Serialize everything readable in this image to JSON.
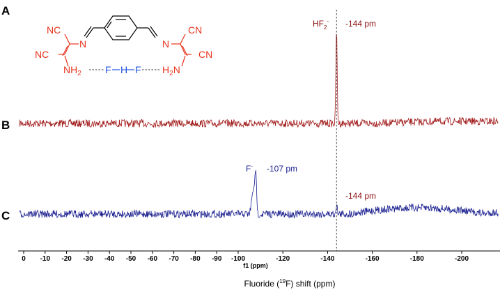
{
  "chart_data": {
    "type": "line",
    "title": "",
    "xlabel": "f1 (ppm)",
    "xlabel_main": "Fluoride (19F) shift (ppm)",
    "xlim": [
      5,
      -215
    ],
    "x_reversed": true,
    "xticks": [
      0,
      -10,
      -20,
      -30,
      -40,
      -50,
      -60,
      -70,
      -80,
      -90,
      -100,
      -120,
      -140,
      -160,
      -180,
      -200
    ],
    "panels": [
      "A",
      "B",
      "C"
    ],
    "reference_line": {
      "x": -144,
      "style": "dashed"
    },
    "series": [
      {
        "panel": "B",
        "color": "#a11a1a",
        "peaks": [
          {
            "x": -144,
            "label": "-144 pm",
            "species": "HF2-"
          }
        ]
      },
      {
        "panel": "C",
        "color": "#1a1f8f",
        "peaks": [
          {
            "x": -107,
            "label": "-107 pm",
            "species": "F-"
          },
          {
            "x": -144,
            "label": "-144 pm",
            "species": ""
          }
        ]
      }
    ]
  },
  "annotations": {
    "hf2_label": "HF",
    "hf2_sub": "2",
    "hf2_sup": "-",
    "peak_b_label": "-144 pm",
    "f_label": "F",
    "f_sup": "-",
    "peak_c1_label": "-107 pm",
    "peak_c2_label": "-144 pm"
  },
  "axis": {
    "f1_label": "f1 (ppm)",
    "title_prefix": "Fluoride (",
    "title_sup": "19",
    "title_suffix": "F) shift (ppm)"
  },
  "structure": {
    "nc_top_left": "NC",
    "nc_left": "NC",
    "cn_top_right": "CN",
    "cn_right": "CN",
    "n_left": "N",
    "n_right": "N",
    "nh2_left": "NH",
    "nh2_left_sub": "2",
    "h2n_right_h": "H",
    "h2n_right_sub": "2",
    "h2n_right_n": "N",
    "f_left": "F",
    "h_center": "H",
    "f_right": "F",
    "red": "#e8341c",
    "blue": "#2255dd"
  }
}
